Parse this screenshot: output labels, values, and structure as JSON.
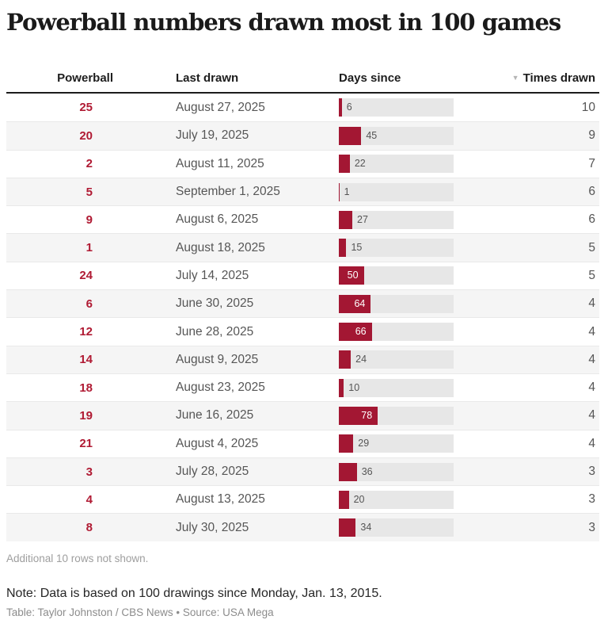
{
  "title": "Powerball numbers drawn most in 100 games",
  "header": {
    "sort_indicator": "▼",
    "sorted_column": "Times drawn",
    "sort_direction": "desc"
  },
  "chart_data": {
    "type": "table",
    "title": "Powerball numbers drawn most in 100 games",
    "columns": [
      "Powerball",
      "Last drawn",
      "Days since",
      "Times drawn"
    ],
    "bar_column": "Days since",
    "bar_scale_max": 230,
    "bar_label_inside_threshold": 50,
    "rows": [
      {
        "powerball": "25",
        "last_drawn": "August 27, 2025",
        "days_since": 6,
        "times_drawn": "10"
      },
      {
        "powerball": "20",
        "last_drawn": "July 19, 2025",
        "days_since": 45,
        "times_drawn": "9"
      },
      {
        "powerball": "2",
        "last_drawn": "August 11, 2025",
        "days_since": 22,
        "times_drawn": "7"
      },
      {
        "powerball": "5",
        "last_drawn": "September 1, 2025",
        "days_since": 1,
        "times_drawn": "6"
      },
      {
        "powerball": "9",
        "last_drawn": "August 6, 2025",
        "days_since": 27,
        "times_drawn": "6"
      },
      {
        "powerball": "1",
        "last_drawn": "August 18, 2025",
        "days_since": 15,
        "times_drawn": "5"
      },
      {
        "powerball": "24",
        "last_drawn": "July 14, 2025",
        "days_since": 50,
        "times_drawn": "5"
      },
      {
        "powerball": "6",
        "last_drawn": "June 30, 2025",
        "days_since": 64,
        "times_drawn": "4"
      },
      {
        "powerball": "12",
        "last_drawn": "June 28, 2025",
        "days_since": 66,
        "times_drawn": "4"
      },
      {
        "powerball": "14",
        "last_drawn": "August 9, 2025",
        "days_since": 24,
        "times_drawn": "4"
      },
      {
        "powerball": "18",
        "last_drawn": "August 23, 2025",
        "days_since": 10,
        "times_drawn": "4"
      },
      {
        "powerball": "19",
        "last_drawn": "June 16, 2025",
        "days_since": 78,
        "times_drawn": "4"
      },
      {
        "powerball": "21",
        "last_drawn": "August 4, 2025",
        "days_since": 29,
        "times_drawn": "4"
      },
      {
        "powerball": "3",
        "last_drawn": "July 28, 2025",
        "days_since": 36,
        "times_drawn": "3"
      },
      {
        "powerball": "4",
        "last_drawn": "August 13, 2025",
        "days_since": 20,
        "times_drawn": "3"
      },
      {
        "powerball": "8",
        "last_drawn": "July 30, 2025",
        "days_since": 34,
        "times_drawn": "3"
      }
    ]
  },
  "footer": {
    "additional_rows": "Additional 10 rows not shown.",
    "note": "Note: Data is based on 100 drawings since Monday, Jan. 13, 2015.",
    "credit": "Table: Taylor Johnston / CBS News • Source: USA Mega"
  },
  "colors": {
    "bar": "#a31733",
    "powerball_number": "#b01a33",
    "bar_track": "#e7e7e7",
    "alt_row": "#f5f5f5",
    "sort_arrow": "#b5b5b5",
    "header_rule": "#1c1c1c"
  }
}
